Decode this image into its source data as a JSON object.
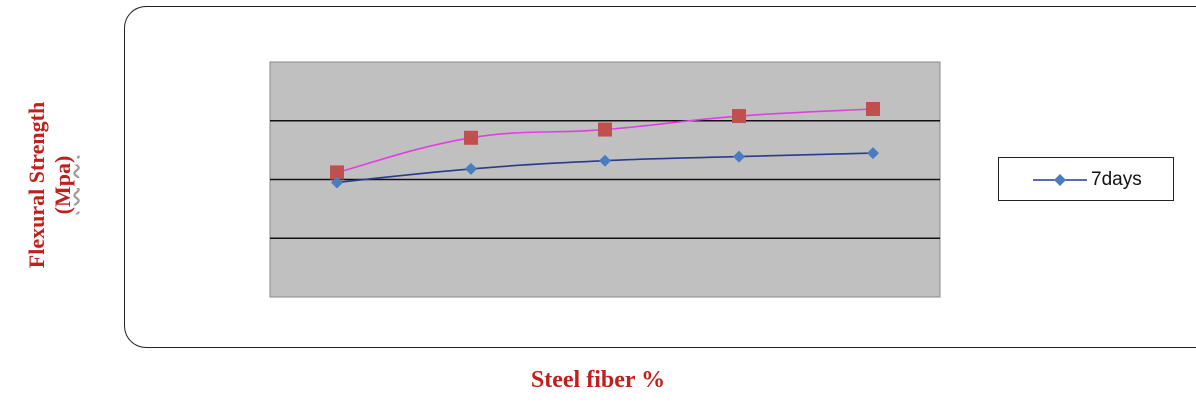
{
  "chart_data": {
    "type": "line",
    "xlabel": "Steel fiber %",
    "ylabel": "Flexural Strength",
    "ylabel_unit": "(Mpa)",
    "categories": [
      "",
      "",
      "",
      "",
      ""
    ],
    "ylim": [
      0,
      4
    ],
    "grid": true,
    "legend_position": "right",
    "plot_background": "#c0c0c0",
    "series": [
      {
        "name": "7days",
        "values": [
          1.95,
          2.18,
          2.32,
          2.39,
          2.45
        ],
        "color": "#2a3a8c",
        "marker": "diamond",
        "marker_color": "#4a7cc0"
      },
      {
        "name": "",
        "values": [
          2.12,
          2.71,
          2.85,
          3.08,
          3.2
        ],
        "color": "#e040e0",
        "marker": "square",
        "marker_color": "#c0504d"
      }
    ]
  }
}
